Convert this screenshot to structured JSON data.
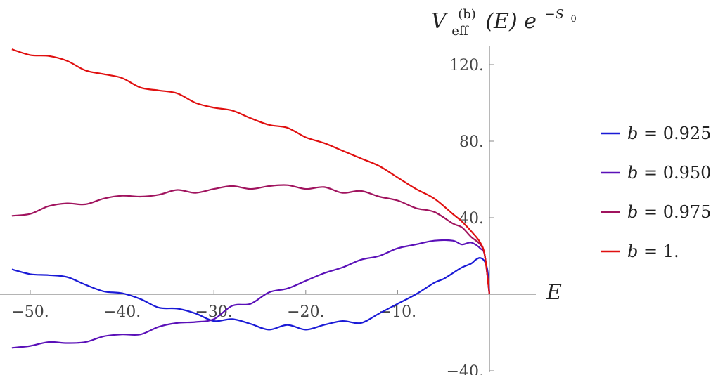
{
  "chart_data": {
    "type": "line",
    "x_axis": {
      "label": "E",
      "range": [
        -52,
        10
      ],
      "ticks": [
        -50,
        -40,
        -30,
        -20,
        -10
      ],
      "tick_labels": [
        "−50.",
        "−40.",
        "−30.",
        "−20.",
        "−10."
      ]
    },
    "y_axis": {
      "label_main": "V",
      "label_sub": "eff",
      "label_sup": "(b)",
      "label_args": "(E) e",
      "label_exp": "−S",
      "label_exp_sub": "0",
      "range": [
        -42,
        130
      ],
      "ticks": [
        -40,
        40,
        80,
        120
      ],
      "tick_labels": [
        "−40.",
        "40.",
        "80.",
        "120."
      ]
    },
    "grid": false,
    "legend_placement": "right",
    "series": [
      {
        "name": "b = 0.925",
        "name_var": "b",
        "name_rest": " = 0.925",
        "color": "#1a1ad6",
        "points": [
          [
            -52,
            13
          ],
          [
            -50,
            10.5
          ],
          [
            -48,
            10
          ],
          [
            -46,
            9
          ],
          [
            -44,
            5
          ],
          [
            -42,
            1.5
          ],
          [
            -40,
            0.5
          ],
          [
            -38,
            -2.5
          ],
          [
            -36,
            -7
          ],
          [
            -34,
            -7.5
          ],
          [
            -32,
            -10
          ],
          [
            -30,
            -14
          ],
          [
            -28,
            -13
          ],
          [
            -26,
            -15.5
          ],
          [
            -24,
            -18.5
          ],
          [
            -22,
            -16
          ],
          [
            -20,
            -18.5
          ],
          [
            -18,
            -16
          ],
          [
            -16,
            -14
          ],
          [
            -14,
            -15
          ],
          [
            -12,
            -10
          ],
          [
            -10,
            -5
          ],
          [
            -8,
            0
          ],
          [
            -6,
            6
          ],
          [
            -5,
            8
          ],
          [
            -4,
            11
          ],
          [
            -3,
            14
          ],
          [
            -2,
            16
          ],
          [
            -1.5,
            18
          ],
          [
            -1,
            19
          ],
          [
            -0.5,
            17
          ],
          [
            -0.2,
            12
          ],
          [
            0,
            0
          ]
        ]
      },
      {
        "name": "b = 0.950",
        "name_var": "b",
        "name_rest": " = 0.950",
        "color": "#5a10b8",
        "points": [
          [
            -52,
            -28
          ],
          [
            -50,
            -27
          ],
          [
            -48,
            -25
          ],
          [
            -46,
            -25.5
          ],
          [
            -44,
            -25
          ],
          [
            -42,
            -22
          ],
          [
            -40,
            -21
          ],
          [
            -38,
            -21
          ],
          [
            -36,
            -17
          ],
          [
            -34,
            -15
          ],
          [
            -32,
            -14.5
          ],
          [
            -30,
            -13
          ],
          [
            -28,
            -6
          ],
          [
            -26,
            -5
          ],
          [
            -24,
            1
          ],
          [
            -22,
            3
          ],
          [
            -20,
            7
          ],
          [
            -18,
            11
          ],
          [
            -16,
            14
          ],
          [
            -14,
            18
          ],
          [
            -12,
            20
          ],
          [
            -10,
            24
          ],
          [
            -8,
            26
          ],
          [
            -6,
            28
          ],
          [
            -4,
            28
          ],
          [
            -3,
            26
          ],
          [
            -2,
            27
          ],
          [
            -1,
            24
          ],
          [
            -0.5,
            20
          ],
          [
            0,
            0
          ]
        ]
      },
      {
        "name": "b = 0.975",
        "name_var": "b",
        "name_rest": " = 0.975",
        "color": "#a0135e",
        "points": [
          [
            -52,
            41
          ],
          [
            -50,
            42
          ],
          [
            -48,
            46
          ],
          [
            -46,
            47.5
          ],
          [
            -44,
            47
          ],
          [
            -42,
            50
          ],
          [
            -40,
            51.5
          ],
          [
            -38,
            51
          ],
          [
            -36,
            52
          ],
          [
            -34,
            54.5
          ],
          [
            -32,
            53
          ],
          [
            -30,
            55
          ],
          [
            -28,
            56.5
          ],
          [
            -26,
            55
          ],
          [
            -24,
            56.5
          ],
          [
            -22,
            57
          ],
          [
            -20,
            55
          ],
          [
            -18,
            56
          ],
          [
            -16,
            53
          ],
          [
            -14,
            54
          ],
          [
            -12,
            51
          ],
          [
            -10,
            49
          ],
          [
            -8,
            45
          ],
          [
            -6,
            43
          ],
          [
            -4,
            37
          ],
          [
            -3,
            35
          ],
          [
            -2,
            30
          ],
          [
            -1,
            26
          ],
          [
            -0.5,
            20
          ],
          [
            0,
            0
          ]
        ]
      },
      {
        "name": "b = 1.",
        "name_var": "b",
        "name_rest": " = 1.",
        "color": "#e01010",
        "points": [
          [
            -52,
            128
          ],
          [
            -50,
            125
          ],
          [
            -48,
            124.5
          ],
          [
            -46,
            122
          ],
          [
            -44,
            117
          ],
          [
            -42,
            115
          ],
          [
            -40,
            113
          ],
          [
            -38,
            108
          ],
          [
            -36,
            106.5
          ],
          [
            -34,
            105
          ],
          [
            -32,
            100
          ],
          [
            -30,
            97.5
          ],
          [
            -28,
            96
          ],
          [
            -26,
            92
          ],
          [
            -24,
            88.5
          ],
          [
            -22,
            87
          ],
          [
            -20,
            82
          ],
          [
            -18,
            79
          ],
          [
            -16,
            75
          ],
          [
            -14,
            71
          ],
          [
            -12,
            67
          ],
          [
            -10,
            61
          ],
          [
            -8,
            55
          ],
          [
            -6,
            50
          ],
          [
            -4,
            42
          ],
          [
            -3,
            38
          ],
          [
            -2,
            33
          ],
          [
            -1,
            27
          ],
          [
            -0.5,
            20
          ],
          [
            0,
            0
          ]
        ]
      }
    ]
  }
}
